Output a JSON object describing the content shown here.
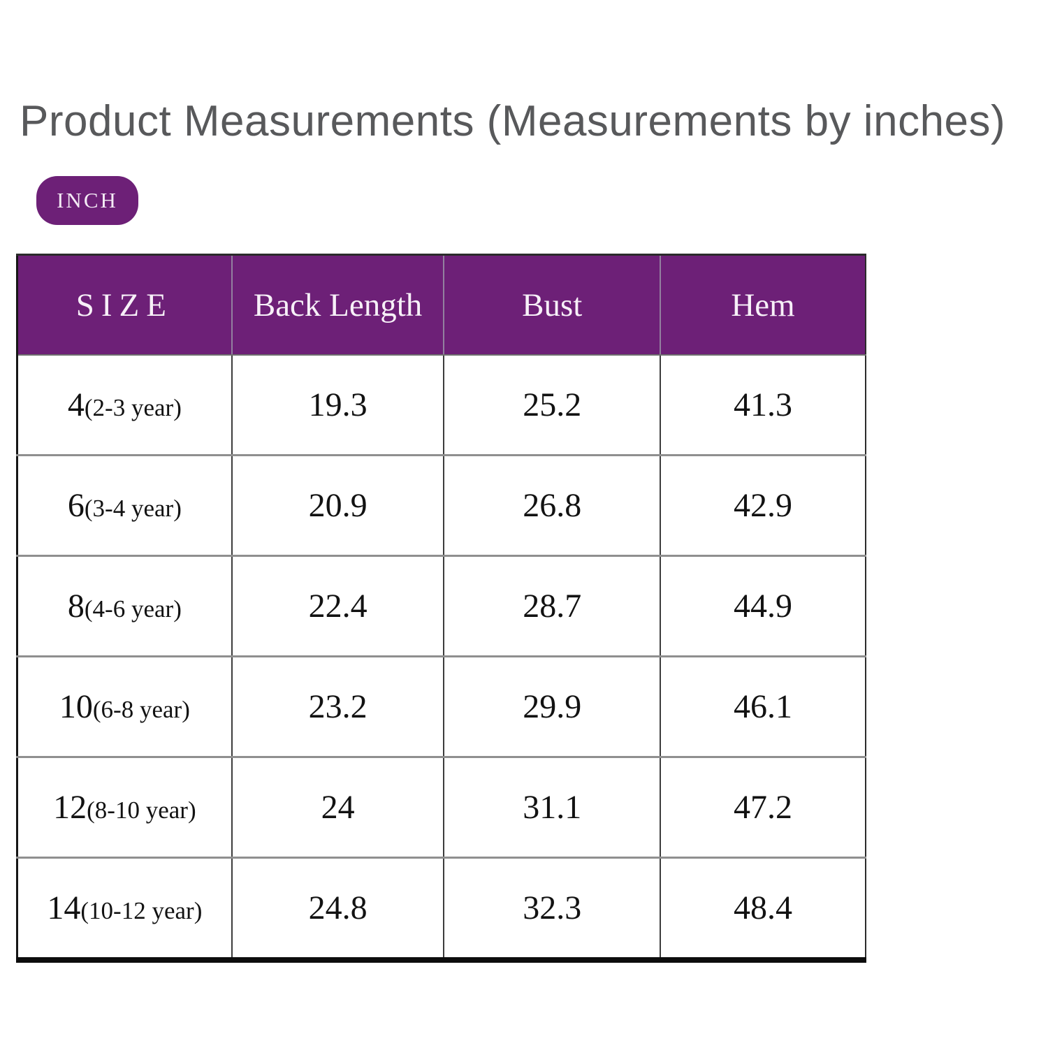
{
  "title": "Product Measurements (Measurements by inches)",
  "unit_badge": "INCH",
  "colors": {
    "accent_purple": "#6D2077",
    "title_gray": "#58595B",
    "header_text": "#F7F0F8",
    "body_text": "#121212"
  },
  "table": {
    "columns": [
      "SIZE",
      "Back Length",
      "Bust",
      "Hem"
    ],
    "rows": [
      {
        "size": "4",
        "age": "(2-3 year)",
        "back_length": "19.3",
        "bust": "25.2",
        "hem": "41.3"
      },
      {
        "size": "6",
        "age": "(3-4 year)",
        "back_length": "20.9",
        "bust": "26.8",
        "hem": "42.9"
      },
      {
        "size": "8",
        "age": "(4-6 year)",
        "back_length": "22.4",
        "bust": "28.7",
        "hem": "44.9"
      },
      {
        "size": "10",
        "age": "(6-8 year)",
        "back_length": "23.2",
        "bust": "29.9",
        "hem": "46.1"
      },
      {
        "size": "12",
        "age": "(8-10 year)",
        "back_length": "24",
        "bust": "31.1",
        "hem": "47.2"
      },
      {
        "size": "14",
        "age": "(10-12 year)",
        "back_length": "24.8",
        "bust": "32.3",
        "hem": "48.4"
      }
    ]
  },
  "chart_data": {
    "type": "table",
    "title": "Product Measurements (Measurements by inches)",
    "unit": "inches",
    "columns": [
      "SIZE",
      "Back Length",
      "Bust",
      "Hem"
    ],
    "rows": [
      [
        "4 (2-3 year)",
        19.3,
        25.2,
        41.3
      ],
      [
        "6 (3-4 year)",
        20.9,
        26.8,
        42.9
      ],
      [
        "8 (4-6 year)",
        22.4,
        28.7,
        44.9
      ],
      [
        "10 (6-8 year)",
        23.2,
        29.9,
        46.1
      ],
      [
        "12 (8-10 year)",
        24,
        31.1,
        47.2
      ],
      [
        "14 (10-12 year)",
        24.8,
        32.3,
        48.4
      ]
    ]
  }
}
